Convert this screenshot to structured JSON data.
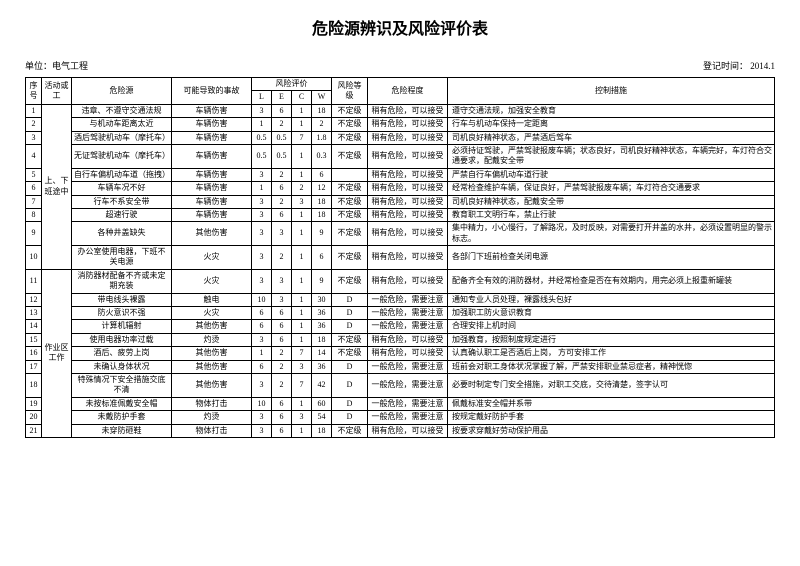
{
  "title": "危险源辨识及风险评价表",
  "unit_label": "单位：电气工程",
  "date_label": "登记时间： 2014.1",
  "headers": {
    "seq": "序号",
    "activity": "活动或工",
    "source": "危险源",
    "accident": "可能导致的事故",
    "eval": "风险评价",
    "L": "L",
    "E": "E",
    "C": "C",
    "W": "W",
    "level": "风险等级",
    "degree": "危险程度",
    "control": "控制措施"
  },
  "activity_group1": "上、下班途中",
  "activity_group2": "作业区工作",
  "rows": [
    {
      "n": "1",
      "src": "违章、不遵守交通法规",
      "acc": "车辆伤害",
      "L": "3",
      "E": "6",
      "C": "1",
      "W": "18",
      "lvl": "不定级",
      "deg": "稍有危险，可以接受",
      "ctrl": "遵守交通法规，加强安全教育"
    },
    {
      "n": "2",
      "src": "与机动车距离太近",
      "acc": "车辆伤害",
      "L": "1",
      "E": "2",
      "C": "1",
      "W": "2",
      "lvl": "不定级",
      "deg": "稍有危险，可以接受",
      "ctrl": "行车与机动车保持一定距离"
    },
    {
      "n": "3",
      "src": "酒后驾驶机动车（摩托车）",
      "acc": "车辆伤害",
      "L": "0.5",
      "E": "0.5",
      "C": "7",
      "W": "1.8",
      "lvl": "不定级",
      "deg": "稍有危险，可以接受",
      "ctrl": "司机良好精神状态，严禁酒后驾车"
    },
    {
      "n": "4",
      "src": "无证驾驶机动车（摩托车）",
      "acc": "车辆伤害",
      "L": "0.5",
      "E": "0.5",
      "C": "1",
      "W": "0.3",
      "lvl": "不定级",
      "deg": "稍有危险，可以接受",
      "ctrl": "必须持证驾驶，严禁驾驶报废车辆；状态良好，司机良好精神状态，车辆完好，车灯符合交通要求，配戴安全带"
    },
    {
      "n": "5",
      "src": "自行车偏机动车道（拖拽）",
      "acc": "车辆伤害",
      "L": "3",
      "E": "2",
      "C": "1",
      "W": "6",
      "lvl": "",
      "deg": "稍有危险，可以接受",
      "ctrl": "严禁自行车偏机动车道行驶"
    },
    {
      "n": "6",
      "src": "车辆车况不好",
      "acc": "车辆伤害",
      "L": "1",
      "E": "6",
      "C": "2",
      "W": "12",
      "lvl": "不定级",
      "deg": "稍有危险，可以接受",
      "ctrl": "经常检查维护车辆，保证良好，严禁驾驶报废车辆；车灯符合交通要求"
    },
    {
      "n": "7",
      "src": "行车不系安全带",
      "acc": "车辆伤害",
      "L": "3",
      "E": "2",
      "C": "3",
      "W": "18",
      "lvl": "不定级",
      "deg": "稍有危险，可以接受",
      "ctrl": "司机良好精神状态，配戴安全带"
    },
    {
      "n": "8",
      "src": "超速行驶",
      "acc": "车辆伤害",
      "L": "3",
      "E": "6",
      "C": "1",
      "W": "18",
      "lvl": "不定级",
      "deg": "稍有危险，可以接受",
      "ctrl": "教育职工文明行车，禁止行驶"
    },
    {
      "n": "9",
      "src": "各种井盖缺失",
      "acc": "其他伤害",
      "L": "3",
      "E": "3",
      "C": "1",
      "W": "9",
      "lvl": "不定级",
      "deg": "稍有危险，可以接受",
      "ctrl": "集中精力，小心慢行，了解路况，及时反映，对需要打开井盖的水井，必须设置明显的警示标志。"
    },
    {
      "n": "10",
      "src": "办公室使用电器，下班不关电源",
      "acc": "火灾",
      "L": "3",
      "E": "2",
      "C": "1",
      "W": "6",
      "lvl": "不定级",
      "deg": "稍有危险，可以接受",
      "ctrl": "各部门下班前检查关闭电源"
    },
    {
      "n": "11",
      "src": "消防器材配备不齐或未定期充装",
      "acc": "火灾",
      "L": "3",
      "E": "3",
      "C": "1",
      "W": "9",
      "lvl": "不定级",
      "deg": "稍有危险，可以接受",
      "ctrl": "配备齐全有效的消防器材，并经常检查是否在有效期内，用完必须上报重新罐装"
    },
    {
      "n": "12",
      "src": "带电线头裸露",
      "acc": "触电",
      "L": "10",
      "E": "3",
      "C": "1",
      "W": "30",
      "lvl": "D",
      "deg": "一般危险，需要注意",
      "ctrl": "通知专业人员处理，裸露线头包好"
    },
    {
      "n": "13",
      "src": "防火意识不强",
      "acc": "火灾",
      "L": "6",
      "E": "6",
      "C": "1",
      "W": "36",
      "lvl": "D",
      "deg": "一般危险，需要注意",
      "ctrl": "加强职工防火意识教育"
    },
    {
      "n": "14",
      "src": "计算机辐射",
      "acc": "其他伤害",
      "L": "6",
      "E": "6",
      "C": "1",
      "W": "36",
      "lvl": "D",
      "deg": "一般危险，需要注意",
      "ctrl": "合理安排上机时间"
    },
    {
      "n": "15",
      "src": "使用电器功率过载",
      "acc": "灼烫",
      "L": "3",
      "E": "6",
      "C": "1",
      "W": "18",
      "lvl": "不定级",
      "deg": "稍有危险，可以接受",
      "ctrl": "加强教育，按照制度规定进行"
    },
    {
      "n": "16",
      "src": "酒后、疲劳上岗",
      "acc": "其他伤害",
      "L": "1",
      "E": "2",
      "C": "7",
      "W": "14",
      "lvl": "不定级",
      "deg": "稍有危险，可以接受",
      "ctrl": "认真确认职工是否酒后上岗， 方可安排工作"
    },
    {
      "n": "17",
      "src": "未确认身体状况",
      "acc": "其他伤害",
      "L": "6",
      "E": "2",
      "C": "3",
      "W": "36",
      "lvl": "D",
      "deg": "一般危险，需要注意",
      "ctrl": "班前会对职工身体状况掌握了解，严禁安排职业禁忌症者，精神恍惚"
    },
    {
      "n": "18",
      "src": "特殊情况下安全措施交底不清",
      "acc": "其他伤害",
      "L": "3",
      "E": "2",
      "C": "7",
      "W": "42",
      "lvl": "D",
      "deg": "一般危险，需要注意",
      "ctrl": "必要时制定专门安全措施，对职工交底，交待清楚，签字认可"
    },
    {
      "n": "19",
      "src": "未按标准佩戴安全帽",
      "acc": "物体打击",
      "L": "10",
      "E": "6",
      "C": "1",
      "W": "60",
      "lvl": "D",
      "deg": "一般危险，需要注意",
      "ctrl": "佩戴标准安全帽并系带"
    },
    {
      "n": "20",
      "src": "未戴防护手套",
      "acc": "灼烫",
      "L": "3",
      "E": "6",
      "C": "3",
      "W": "54",
      "lvl": "D",
      "deg": "一般危险，需要注意",
      "ctrl": "按规定戴好防护手套"
    },
    {
      "n": "21",
      "src": "未穿防砸鞋",
      "acc": "物体打击",
      "L": "3",
      "E": "6",
      "C": "1",
      "W": "18",
      "lvl": "不定级",
      "deg": "稍有危险，可以接受",
      "ctrl": "按要求穿戴好劳动保护用品"
    }
  ]
}
